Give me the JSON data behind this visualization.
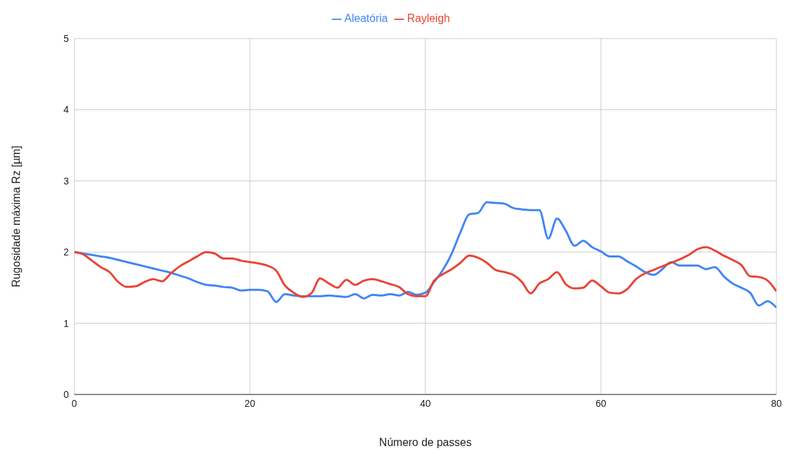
{
  "chart_data": {
    "type": "line",
    "xlabel": "Número de passes",
    "ylabel": "Rugosidade máxima Rz [µm]",
    "x": [
      0,
      1,
      2,
      3,
      4,
      5,
      6,
      7,
      8,
      9,
      10,
      11,
      12,
      13,
      14,
      15,
      16,
      17,
      18,
      19,
      20,
      21,
      22,
      23,
      24,
      25,
      26,
      27,
      28,
      29,
      30,
      31,
      32,
      33,
      34,
      35,
      36,
      37,
      38,
      39,
      40,
      41,
      42,
      43,
      44,
      45,
      46,
      47,
      48,
      49,
      50,
      51,
      52,
      53,
      54,
      55,
      56,
      57,
      58,
      59,
      60,
      61,
      62,
      63,
      64,
      65,
      66,
      67,
      68,
      69,
      70,
      71,
      72,
      73,
      74,
      75,
      76,
      77,
      78,
      79,
      80
    ],
    "series": [
      {
        "name": "Aleatória",
        "color": "#4285f4",
        "values": [
          2.0,
          1.98,
          1.96,
          1.94,
          1.92,
          1.89,
          1.86,
          1.83,
          1.8,
          1.77,
          1.74,
          1.71,
          1.67,
          1.63,
          1.58,
          1.54,
          1.53,
          1.51,
          1.5,
          1.46,
          1.47,
          1.47,
          1.45,
          1.3,
          1.41,
          1.39,
          1.38,
          1.38,
          1.38,
          1.39,
          1.38,
          1.37,
          1.41,
          1.35,
          1.4,
          1.39,
          1.41,
          1.39,
          1.44,
          1.4,
          1.43,
          1.58,
          1.75,
          1.98,
          2.28,
          2.53,
          2.55,
          2.7,
          2.69,
          2.68,
          2.62,
          2.6,
          2.59,
          2.59,
          2.19,
          2.47,
          2.3,
          2.09,
          2.16,
          2.07,
          2.01,
          1.94,
          1.94,
          1.87,
          1.8,
          1.72,
          1.68,
          1.76,
          1.86,
          1.81,
          1.81,
          1.81,
          1.76,
          1.79,
          1.66,
          1.56,
          1.5,
          1.43,
          1.25,
          1.31,
          1.22
        ]
      },
      {
        "name": "Rayleigh",
        "color": "#ea4335",
        "values": [
          2.0,
          1.97,
          1.88,
          1.79,
          1.72,
          1.58,
          1.51,
          1.52,
          1.58,
          1.62,
          1.59,
          1.7,
          1.8,
          1.87,
          1.94,
          2.0,
          1.98,
          1.91,
          1.91,
          1.88,
          1.86,
          1.84,
          1.81,
          1.74,
          1.53,
          1.43,
          1.37,
          1.42,
          1.63,
          1.56,
          1.5,
          1.61,
          1.54,
          1.6,
          1.62,
          1.59,
          1.55,
          1.51,
          1.41,
          1.38,
          1.38,
          1.6,
          1.69,
          1.76,
          1.85,
          1.95,
          1.92,
          1.85,
          1.75,
          1.72,
          1.68,
          1.58,
          1.42,
          1.56,
          1.62,
          1.72,
          1.55,
          1.49,
          1.5,
          1.6,
          1.52,
          1.43,
          1.42,
          1.48,
          1.62,
          1.7,
          1.75,
          1.8,
          1.85,
          1.9,
          1.96,
          2.04,
          2.07,
          2.02,
          1.95,
          1.89,
          1.82,
          1.66,
          1.65,
          1.6,
          1.45
        ]
      }
    ],
    "xlim": [
      0,
      80
    ],
    "xticks": [
      0,
      20,
      40,
      60,
      80
    ],
    "ylim": [
      0,
      5
    ],
    "yticks": [
      0,
      1,
      2,
      3,
      4,
      5
    ],
    "grid": true,
    "legend": "top",
    "marker": "none",
    "line_style": "solid"
  }
}
